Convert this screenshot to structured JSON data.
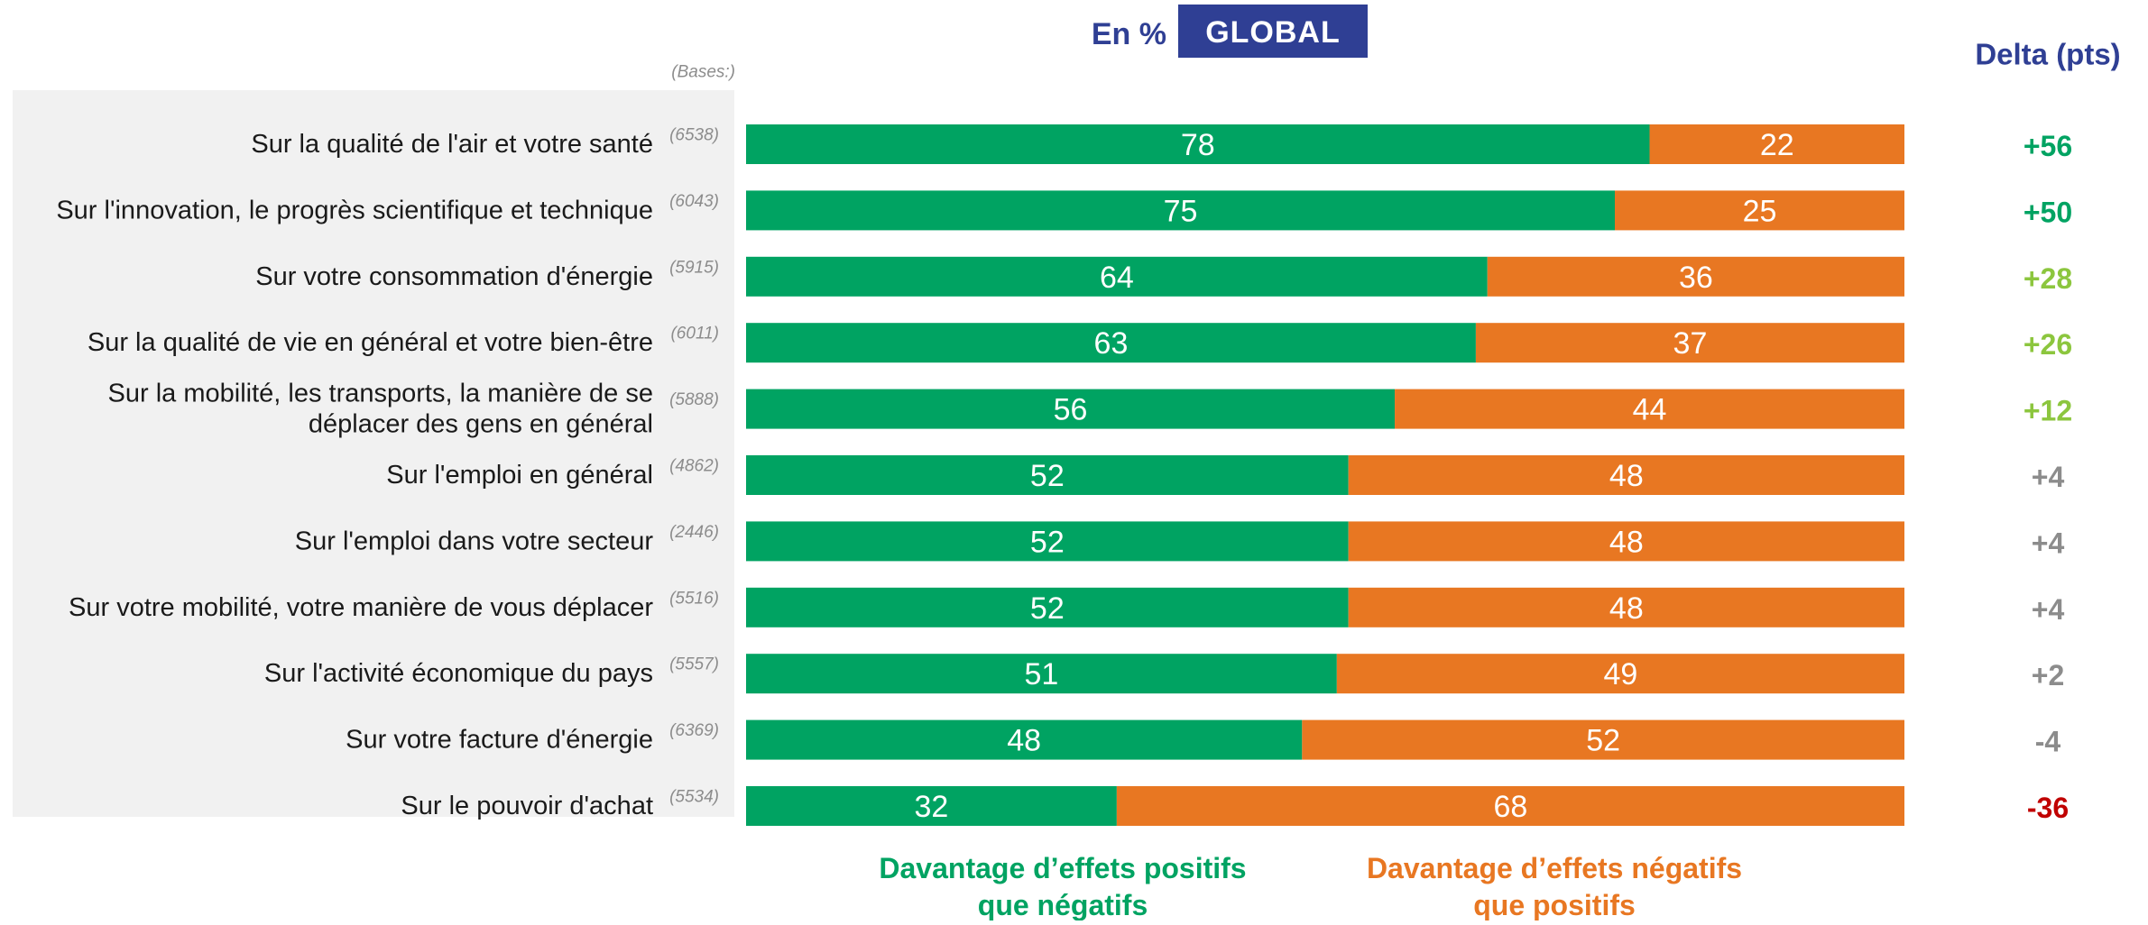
{
  "header": {
    "unit_label": "En %",
    "scope_label": "GLOBAL",
    "delta_title": "Delta (pts)",
    "bases_label": "(Bases:)"
  },
  "legend": {
    "positive_line1": "Davantage d’effets positifs",
    "positive_line2": "que négatifs",
    "negative_line1": "Davantage d’effets négatifs",
    "negative_line2": "que positifs"
  },
  "colors": {
    "positive": "#00A362",
    "negative": "#E87722",
    "label_panel_bg": "#F1F1F1",
    "navy": "#2F3F94",
    "delta_strong_positive": "#00A362",
    "delta_positive": "#8CC63E",
    "delta_neutral": "#8C8C8C",
    "delta_negative": "#C00000",
    "bases_text": "#8C8C8C",
    "label_text": "#1A1A1A"
  },
  "chart_data": {
    "type": "bar",
    "orientation": "horizontal",
    "stacked": true,
    "xlim": [
      0,
      100
    ],
    "grid": false,
    "legend_placement": "bottom",
    "categories": [
      [
        "Sur la qualité de l'air et votre santé"
      ],
      [
        "Sur l'innovation, le progrès scientifique et technique"
      ],
      [
        "Sur votre consommation d'énergie"
      ],
      [
        "Sur la qualité de vie en général et votre bien-être"
      ],
      [
        "Sur la mobilité, les transports, la manière de se",
        "déplacer des gens en général"
      ],
      [
        "Sur l'emploi en général"
      ],
      [
        "Sur l'emploi dans votre secteur"
      ],
      [
        "Sur votre mobilité, votre manière de vous déplacer"
      ],
      [
        "Sur l'activité économique du pays"
      ],
      [
        "Sur votre facture d'énergie"
      ],
      [
        "Sur le pouvoir d'achat"
      ]
    ],
    "bases": [
      "(6538)",
      "(6043)",
      "(5915)",
      "(6011)",
      "(5888)",
      "(4862)",
      "(2446)",
      "(5516)",
      "(5557)",
      "(6369)",
      "(5534)"
    ],
    "series": [
      {
        "name": "Davantage d’effets positifs que négatifs",
        "values": [
          78,
          75,
          64,
          63,
          56,
          52,
          52,
          52,
          51,
          48,
          32
        ]
      },
      {
        "name": "Davantage d’effets négatifs que positifs",
        "values": [
          22,
          25,
          36,
          37,
          44,
          48,
          48,
          48,
          49,
          52,
          68
        ]
      }
    ],
    "delta": [
      "+56",
      "+50",
      "+28",
      "+26",
      "+12",
      "+4",
      "+4",
      "+4",
      "+2",
      "-4",
      "-36"
    ]
  }
}
